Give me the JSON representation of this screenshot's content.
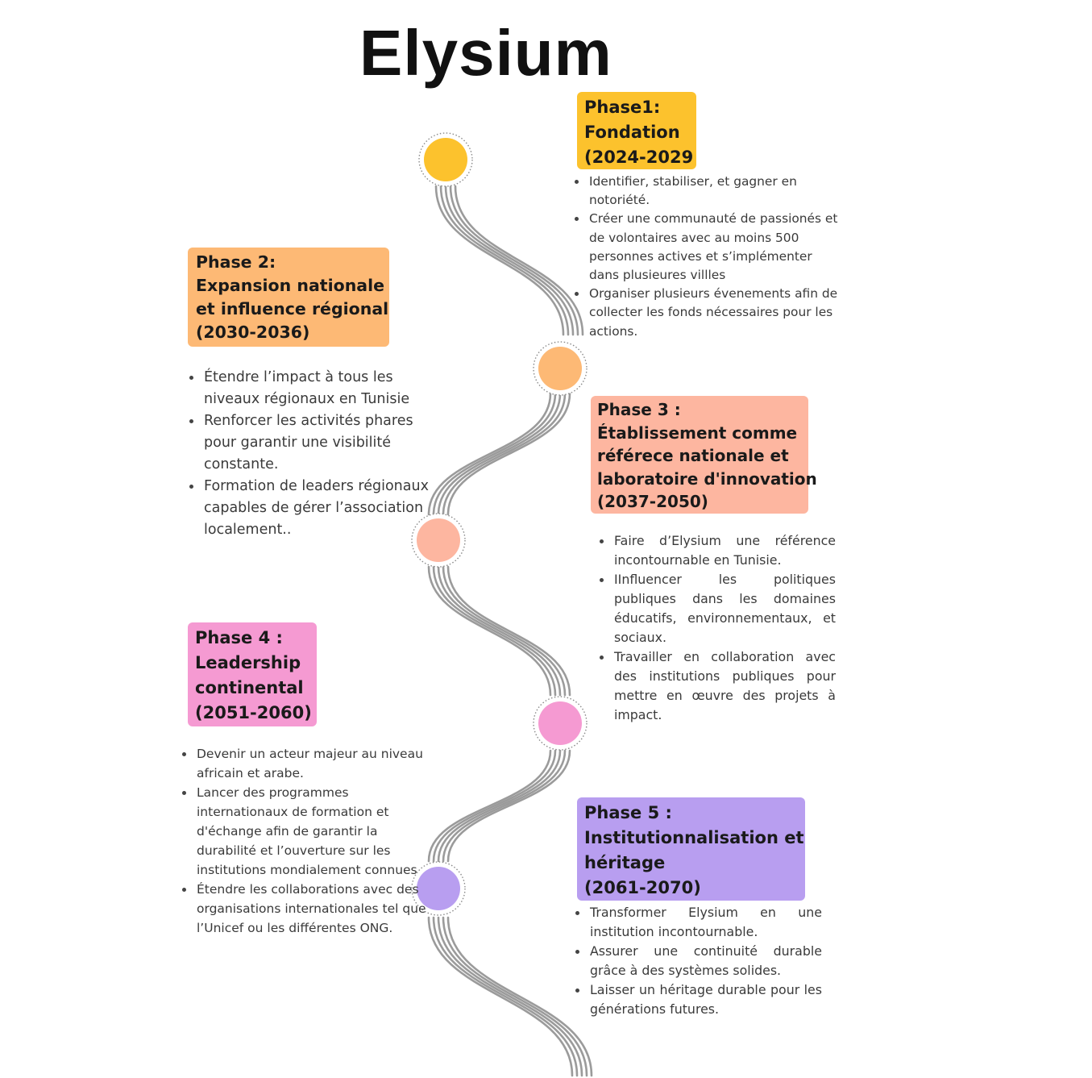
{
  "title": "Elysium",
  "colors": {
    "phase1": "#fcc22d",
    "phase2": "#fdb975",
    "phase3": "#fdb6a0",
    "phase4": "#f59ad2",
    "phase5": "#b89ef0",
    "path": "#9b9b9b"
  },
  "phases": [
    {
      "heading": [
        "Phase1:",
        "Fondation",
        "(2024-2029"
      ],
      "bullets": [
        "Identifier, stabiliser, et gagner en notoriété.",
        "Créer une communauté de passionés et de volontaires  avec au moins 500 personnes actives et s’implémenter dans plusieures villles",
        "Organiser  plusieurs évenements afin de collecter les fonds nécessaires pour les actions."
      ]
    },
    {
      "heading": [
        "Phase 2:",
        "Expansion nationale",
        "et influence  régional",
        "(2030-2036)"
      ],
      "bullets": [
        "Étendre l’impact à tous les niveaux régionaux en Tunisie",
        "Renforcer les activités phares pour garantir une visibilité constante.",
        "Formation de leaders régionaux capables de gérer l’association localement.."
      ]
    },
    {
      "heading": [
        "Phase 3 :",
        "Établissement comme",
        "référece nationale et",
        "laboratoire d'innovation",
        "(2037-2050)"
      ],
      "bullets": [
        "Faire d’Elysium une référence incontournable en Tunisie.",
        "IInfluencer les politiques publiques dans les domaines éducatifs, environnementaux, et sociaux.",
        "Travailler en collaboration avec des institutions publiques pour mettre en œuvre des projets à impact."
      ]
    },
    {
      "heading": [
        "Phase 4 :",
        "Leadership",
        "continental",
        "(2051-2060)"
      ],
      "bullets": [
        "Devenir un acteur majeur au niveau africain et arabe.",
        "Lancer des programmes internationaux de formation et d'échange afin de garantir la durabilité et l’ouverture sur les institutions mondialement connues",
        "Étendre les collaborations avec des organisations internationales tel que l’Unicef ou les différentes ONG."
      ]
    },
    {
      "heading": [
        "Phase 5 :",
        "Institutionnalisation et",
        "héritage",
        "(2061-2070)"
      ],
      "bullets": [
        "Transformer Elysium en une institution incontournable.",
        "Assurer une continuité durable grâce à des systèmes solides.",
        "Laisser un héritage durable pour les générations futures."
      ]
    }
  ]
}
